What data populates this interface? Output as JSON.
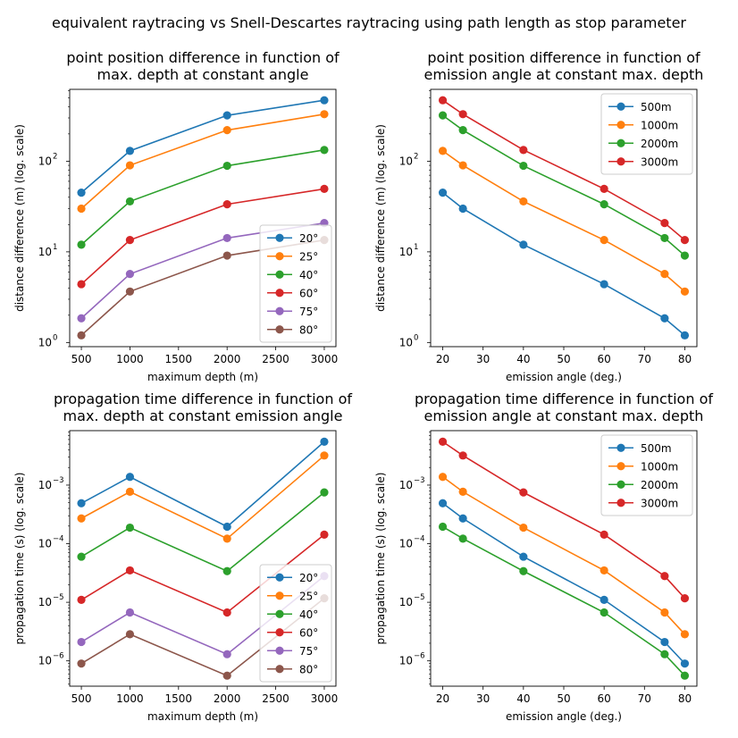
{
  "suptitle": "equivalent raytracing vs Snell-Descartes raytracing using path length as stop parameter",
  "colors": {
    "blue": "#1f77b4",
    "orange": "#ff7f0e",
    "green": "#2ca02c",
    "red": "#d62728",
    "purple": "#9467bd",
    "brown": "#8c564b"
  },
  "chart_data": [
    {
      "type": "line",
      "title": "point position difference in function of\nmax. depth at constant angle",
      "xlabel": "maximum depth (m)",
      "ylabel": "distance difference (m) (log. scale)",
      "yscale": "log",
      "xlim": [
        380,
        3120
      ],
      "ylim": [
        0.9,
        620
      ],
      "xticks": [
        500,
        1000,
        1500,
        2000,
        2500,
        3000
      ],
      "xtick_labels": [
        "500",
        "1000",
        "1500",
        "2000",
        "2500",
        "3000"
      ],
      "yticks": [
        1,
        10,
        100
      ],
      "ytick_labels": [
        "10",
        "10",
        "10"
      ],
      "ytick_exponents": [
        "0",
        "1",
        "2"
      ],
      "legend_position": "lower right",
      "x": [
        500,
        1000,
        2000,
        3000
      ],
      "series": [
        {
          "name": "20°",
          "color": "#1f77b4",
          "values": [
            45,
            130,
            320,
            470
          ]
        },
        {
          "name": "25°",
          "color": "#ff7f0e",
          "values": [
            30,
            90,
            220,
            330
          ]
        },
        {
          "name": "40°",
          "color": "#2ca02c",
          "values": [
            12,
            36,
            89,
            133
          ]
        },
        {
          "name": "60°",
          "color": "#d62728",
          "values": [
            4.4,
            13.5,
            33.5,
            49.5
          ]
        },
        {
          "name": "75°",
          "color": "#9467bd",
          "values": [
            1.85,
            5.7,
            14.2,
            20.8
          ]
        },
        {
          "name": "80°",
          "color": "#8c564b",
          "values": [
            1.2,
            3.65,
            9.1,
            13.5
          ]
        }
      ]
    },
    {
      "type": "line",
      "title": "point position difference in function of\nemission angle at constant max. depth",
      "xlabel": "emission angle (deg.)",
      "ylabel": "distance difference (m) (log. scale)",
      "yscale": "log",
      "xlim": [
        17,
        83
      ],
      "ylim": [
        0.9,
        620
      ],
      "xticks": [
        20,
        30,
        40,
        50,
        60,
        70,
        80
      ],
      "xtick_labels": [
        "20",
        "30",
        "40",
        "50",
        "60",
        "70",
        "80"
      ],
      "yticks": [
        1,
        10,
        100
      ],
      "ytick_labels": [
        "10",
        "10",
        "10"
      ],
      "ytick_exponents": [
        "0",
        "1",
        "2"
      ],
      "legend_position": "upper right",
      "x": [
        20,
        25,
        40,
        60,
        75,
        80
      ],
      "series": [
        {
          "name": "500m",
          "color": "#1f77b4",
          "values": [
            45,
            30,
            12,
            4.4,
            1.85,
            1.2
          ]
        },
        {
          "name": "1000m",
          "color": "#ff7f0e",
          "values": [
            130,
            90,
            36,
            13.5,
            5.7,
            3.65
          ]
        },
        {
          "name": "2000m",
          "color": "#2ca02c",
          "values": [
            320,
            220,
            89,
            33.5,
            14.2,
            9.1
          ]
        },
        {
          "name": "3000m",
          "color": "#d62728",
          "values": [
            470,
            330,
            133,
            49.5,
            20.8,
            13.5
          ]
        }
      ]
    },
    {
      "type": "line",
      "title": "propagation time difference in function of\nmax. depth at constant emission angle",
      "xlabel": "maximum depth (m)",
      "ylabel": "propagation time (s) (log. scale)",
      "yscale": "log",
      "xlim": [
        380,
        3120
      ],
      "ylim": [
        3.7e-07,
        0.0085
      ],
      "xticks": [
        500,
        1000,
        1500,
        2000,
        2500,
        3000
      ],
      "xtick_labels": [
        "500",
        "1000",
        "1500",
        "2000",
        "2500",
        "3000"
      ],
      "yticks": [
        1e-06,
        1e-05,
        0.0001,
        0.001
      ],
      "ytick_labels": [
        "10",
        "10",
        "10",
        "10"
      ],
      "ytick_exponents": [
        "−6",
        "−5",
        "−4",
        "−3"
      ],
      "legend_position": "lower right",
      "x": [
        500,
        1000,
        2000,
        3000
      ],
      "series": [
        {
          "name": "20°",
          "color": "#1f77b4",
          "values": [
            0.00049,
            0.00138,
            0.000195,
            0.0055
          ]
        },
        {
          "name": "25°",
          "color": "#ff7f0e",
          "values": [
            0.00027,
            0.00077,
            0.000122,
            0.0032
          ]
        },
        {
          "name": "40°",
          "color": "#2ca02c",
          "values": [
            6e-05,
            0.000188,
            3.4e-05,
            0.00075
          ]
        },
        {
          "name": "60°",
          "color": "#d62728",
          "values": [
            1.1e-05,
            3.5e-05,
            6.7e-06,
            0.000143
          ]
        },
        {
          "name": "75°",
          "color": "#9467bd",
          "values": [
            2.1e-06,
            6.7e-06,
            1.3e-06,
            2.8e-05
          ]
        },
        {
          "name": "80°",
          "color": "#8c564b",
          "values": [
            9e-07,
            2.85e-06,
            5.6e-07,
            1.17e-05
          ]
        }
      ]
    },
    {
      "type": "line",
      "title": "propagation time difference in function of\nemission angle at constant max. depth",
      "xlabel": "emission angle (deg.)",
      "ylabel": "propagation time (s) (log. scale)",
      "yscale": "log",
      "xlim": [
        17,
        83
      ],
      "ylim": [
        3.7e-07,
        0.0085
      ],
      "xticks": [
        20,
        30,
        40,
        50,
        60,
        70,
        80
      ],
      "xtick_labels": [
        "20",
        "30",
        "40",
        "50",
        "60",
        "70",
        "80"
      ],
      "yticks": [
        1e-06,
        1e-05,
        0.0001,
        0.001
      ],
      "ytick_labels": [
        "10",
        "10",
        "10",
        "10"
      ],
      "ytick_exponents": [
        "−6",
        "−5",
        "−4",
        "−3"
      ],
      "legend_position": "upper right",
      "x": [
        20,
        25,
        40,
        60,
        75,
        80
      ],
      "series": [
        {
          "name": "500m",
          "color": "#1f77b4",
          "values": [
            0.00049,
            0.00027,
            6e-05,
            1.1e-05,
            2.1e-06,
            9e-07
          ]
        },
        {
          "name": "1000m",
          "color": "#ff7f0e",
          "values": [
            0.00138,
            0.00077,
            0.000188,
            3.5e-05,
            6.7e-06,
            2.85e-06
          ]
        },
        {
          "name": "2000m",
          "color": "#2ca02c",
          "values": [
            0.000195,
            0.000122,
            3.4e-05,
            6.7e-06,
            1.3e-06,
            5.6e-07
          ]
        },
        {
          "name": "3000m",
          "color": "#d62728",
          "values": [
            0.0055,
            0.0032,
            0.00075,
            0.000143,
            2.8e-05,
            1.17e-05
          ]
        }
      ]
    }
  ]
}
